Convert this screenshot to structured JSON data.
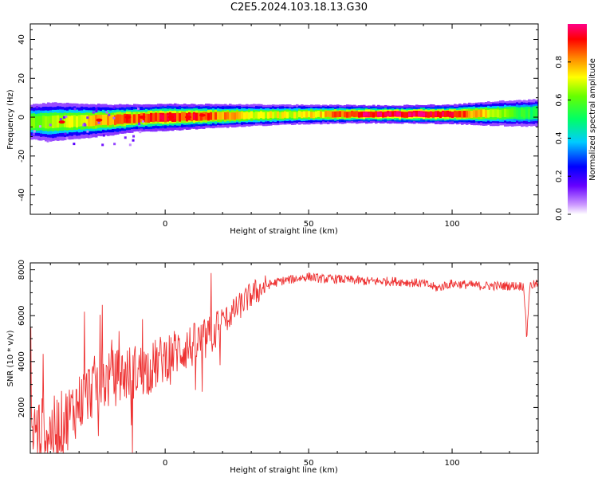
{
  "title": "C2E5.2024.103.18.13.G30",
  "chart_data": [
    {
      "type": "heatmap",
      "xlabel": "Height of straight line (km)",
      "ylabel": "Frequency (Hz)",
      "xlim": [
        -47,
        130
      ],
      "ylim": [
        -50,
        48
      ],
      "xticks": [
        0,
        50,
        100
      ],
      "yticks": [
        -40,
        -20,
        0,
        20,
        40
      ],
      "colorbar": {
        "label": "Normalized spectral amplitude",
        "range": [
          0,
          1
        ],
        "ticks": [
          "0.0",
          "0.2",
          "0.4",
          "0.6",
          "0.8"
        ]
      },
      "ridge": {
        "x": [
          -47,
          -40,
          -30,
          -20,
          -10,
          0,
          10,
          20,
          30,
          40,
          50,
          60,
          70,
          80,
          90,
          100,
          110,
          120,
          130
        ],
        "center_hz": [
          -2.5,
          -2.5,
          -2,
          -1.5,
          -0.5,
          0,
          0.3,
          0.6,
          1,
          1.2,
          1.4,
          1.5,
          1.5,
          1.5,
          1.5,
          1.5,
          1.8,
          2,
          2.2
        ],
        "halfwidth_hz": [
          4.5,
          5,
          4.5,
          4,
          3.5,
          3.5,
          3.2,
          3,
          2.8,
          2.6,
          2.5,
          2.4,
          2.3,
          2.3,
          2.4,
          2.5,
          3,
          3.3,
          3.5
        ],
        "peak_amplitude": [
          0.62,
          0.66,
          0.72,
          0.8,
          0.88,
          0.9,
          0.9,
          0.8,
          0.72,
          0.7,
          0.72,
          0.85,
          0.95,
          0.98,
          0.97,
          0.9,
          0.75,
          0.6,
          0.5
        ]
      },
      "hotspots": [
        {
          "x": -36,
          "y": -2.5
        },
        {
          "x": -23,
          "y": -1.5
        },
        {
          "x": -13,
          "y": 0
        },
        {
          "x": -8,
          "y": 0
        },
        {
          "x": 2,
          "y": 0
        },
        {
          "x": 8,
          "y": 0
        },
        {
          "x": 13,
          "y": 1
        }
      ]
    },
    {
      "type": "line",
      "xlabel": "Height of straight line (km)",
      "ylabel": "SNR (10 * v/v)",
      "xlim": [
        -47,
        130
      ],
      "ylim": [
        0,
        8300
      ],
      "xticks": [
        0,
        50,
        100
      ],
      "yticks": [
        2000,
        4000,
        6000,
        8000
      ],
      "series": [
        {
          "color": "#ee3333",
          "x": [
            -47,
            -40,
            -35,
            -30,
            -25,
            -20,
            -15,
            -10,
            -5,
            0,
            5,
            10,
            15,
            20,
            25,
            30,
            35,
            40,
            45,
            50,
            55,
            60,
            70,
            80,
            90,
            95,
            97,
            100,
            110,
            120,
            125,
            126,
            127,
            130
          ],
          "y": [
            1000,
            900,
            1400,
            2200,
            2900,
            3200,
            3400,
            3600,
            3700,
            4200,
            4500,
            4700,
            5000,
            5700,
            6300,
            6900,
            7300,
            7500,
            7600,
            7700,
            7600,
            7600,
            7500,
            7500,
            7400,
            7200,
            7300,
            7400,
            7300,
            7300,
            7300,
            5000,
            7300,
            7400
          ]
        }
      ]
    }
  ]
}
